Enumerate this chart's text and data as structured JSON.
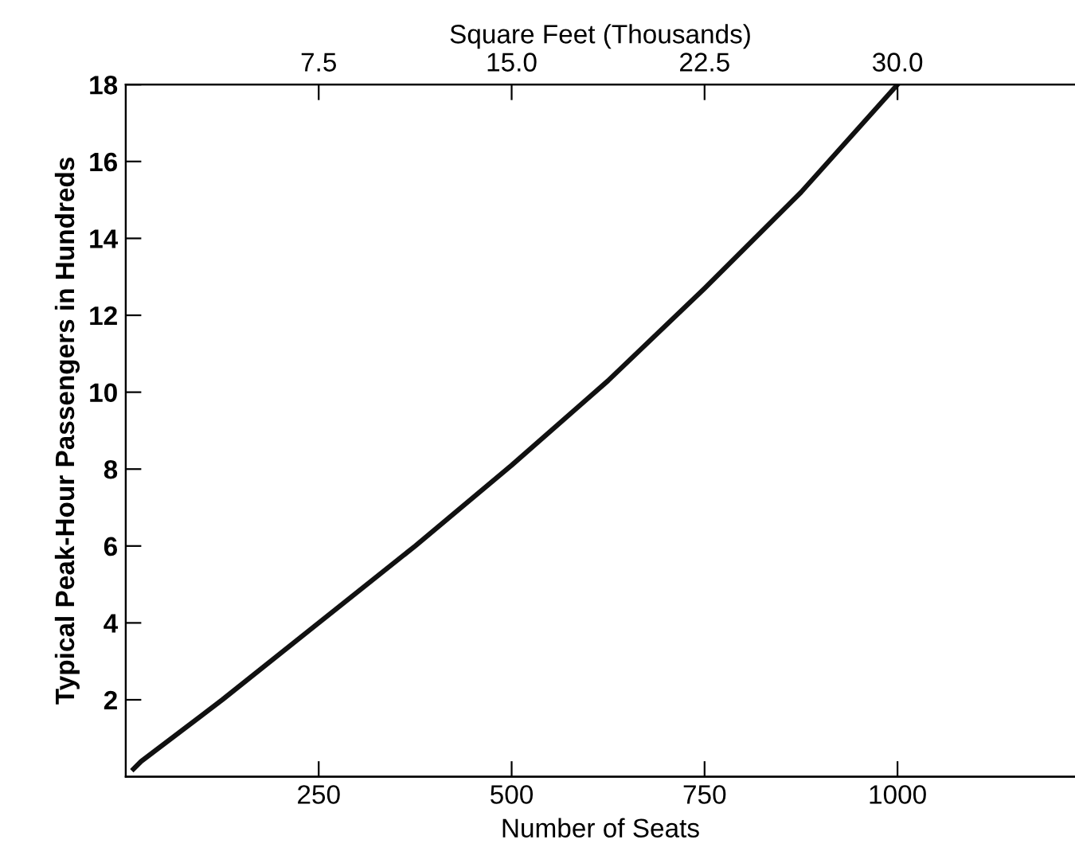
{
  "chart_data": {
    "type": "line",
    "xlabel": "Number of Seats",
    "ylabel": "Typical Peak-Hour Passengers in Hundreds",
    "x2label": "Square Feet (Thousands)",
    "x": [
      10,
      20,
      125,
      250,
      375,
      500,
      625,
      750,
      875,
      1000
    ],
    "series": [
      {
        "color": "#111111",
        "values": [
          0.2,
          0.4,
          2.0,
          4.0,
          6.0,
          8.1,
          10.3,
          12.7,
          15.2,
          18
        ]
      }
    ],
    "xlim": [
      0,
      1230
    ],
    "xticks": [
      250,
      500,
      750,
      1000
    ],
    "x2lim": [
      0,
      36.9
    ],
    "x2ticks": [
      7.5,
      {
        "value": 15,
        "label": "15.0"
      },
      22.5,
      {
        "value": 30,
        "label": "30.0"
      }
    ],
    "ylim": [
      0,
      18
    ],
    "yticks": [
      {
        "value": 2,
        "label": "2"
      },
      {
        "value": 4,
        "label": "4"
      },
      {
        "value": 6,
        "label": "6"
      },
      {
        "value": 8,
        "label": "8"
      },
      {
        "value": 10,
        "label": "10"
      },
      {
        "value": 12,
        "label": "12"
      },
      {
        "value": 14,
        "label": "14"
      },
      {
        "value": 16,
        "label": "16"
      },
      {
        "value": 18,
        "label": "18"
      }
    ],
    "grid": false,
    "legend": false,
    "marker": "none",
    "line_style": "solid"
  }
}
